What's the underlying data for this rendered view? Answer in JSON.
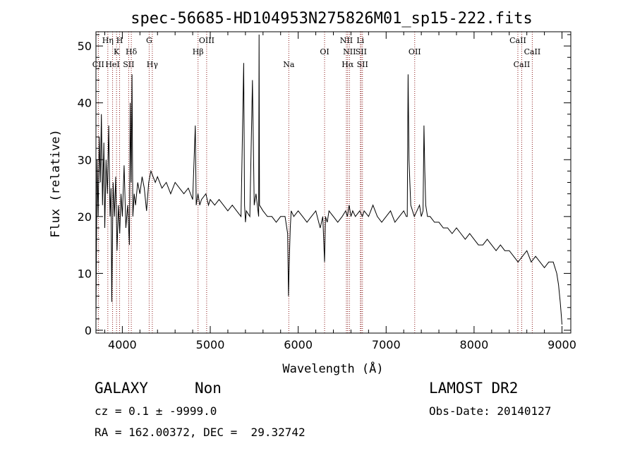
{
  "chart_data": {
    "type": "line",
    "title": "spec-56685-HD104953N275826M01_sp15-222.fits",
    "xlabel": "Wavelength (Å)",
    "ylabel": "Flux (relative)",
    "xlim": [
      3700,
      9100
    ],
    "ylim": [
      -0.5,
      52.5
    ],
    "xticks": [
      4000,
      5000,
      6000,
      7000,
      8000,
      9000
    ],
    "yticks": [
      0,
      10,
      20,
      30,
      40,
      50
    ],
    "grid": false,
    "spectral_lines": [
      {
        "label": "CII",
        "wavelength": 3727,
        "row": 3
      },
      {
        "label": "Hη",
        "wavelength": 3835,
        "row": 1
      },
      {
        "label": "HeI",
        "wavelength": 3889,
        "row": 3
      },
      {
        "label": "K",
        "wavelength": 3934,
        "row": 2
      },
      {
        "label": "H",
        "wavelength": 3969,
        "row": 1
      },
      {
        "label": "SII",
        "wavelength": 4072,
        "row": 3
      },
      {
        "label": "Hδ",
        "wavelength": 4102,
        "row": 2
      },
      {
        "label": "G",
        "wavelength": 4305,
        "row": 1
      },
      {
        "label": "Hγ",
        "wavelength": 4341,
        "row": 3
      },
      {
        "label": "Hβ",
        "wavelength": 4861,
        "row": 2
      },
      {
        "label": "OIII",
        "wavelength": 4959,
        "row": 1
      },
      {
        "label": "Na",
        "wavelength": 5893,
        "row": 3
      },
      {
        "label": "OI",
        "wavelength": 6300,
        "row": 2
      },
      {
        "label": "NII",
        "wavelength": 6548,
        "row": 1
      },
      {
        "label": "NII",
        "wavelength": 6583,
        "row": 2
      },
      {
        "label": "Hα",
        "wavelength": 6563,
        "row": 3
      },
      {
        "label": "Li",
        "wavelength": 6707,
        "row": 1
      },
      {
        "label": "SII",
        "wavelength": 6716,
        "row": 2
      },
      {
        "label": "SII",
        "wavelength": 6731,
        "row": 3
      },
      {
        "label": "OII",
        "wavelength": 7325,
        "row": 2
      },
      {
        "label": "CaII",
        "wavelength": 8498,
        "row": 1
      },
      {
        "label": "CaII",
        "wavelength": 8542,
        "row": 3
      },
      {
        "label": "CaII",
        "wavelength": 8662,
        "row": 2
      }
    ],
    "series": [
      {
        "x": [
          3700,
          3712,
          3725,
          3738,
          3750,
          3762,
          3775,
          3790,
          3800,
          3815,
          3830,
          3845,
          3860,
          3872,
          3880,
          3895,
          3910,
          3925,
          3940,
          3955,
          3970,
          3985,
          4000,
          4020,
          4040,
          4060,
          4080,
          4090,
          4100,
          4110,
          4120,
          4135,
          4150,
          4175,
          4200,
          4225,
          4250,
          4275,
          4300,
          4325,
          4350,
          4375,
          4400,
          4450,
          4500,
          4550,
          4600,
          4650,
          4700,
          4750,
          4800,
          4830,
          4840,
          4860,
          4880,
          4900,
          4950,
          4980,
          5000,
          5050,
          5100,
          5150,
          5200,
          5250,
          5300,
          5350,
          5380,
          5390,
          5400,
          5410,
          5450,
          5480,
          5500,
          5520,
          5550,
          5555,
          5560,
          5600,
          5650,
          5700,
          5750,
          5800,
          5850,
          5880,
          5890,
          5895,
          5900,
          5910,
          5920,
          5950,
          6000,
          6050,
          6100,
          6150,
          6200,
          6250,
          6280,
          6300,
          6310,
          6330,
          6350,
          6400,
          6450,
          6500,
          6540,
          6560,
          6580,
          6600,
          6620,
          6650,
          6700,
          6730,
          6750,
          6800,
          6850,
          6900,
          6950,
          7000,
          7050,
          7100,
          7150,
          7200,
          7230,
          7240,
          7250,
          7260,
          7270,
          7280,
          7300,
          7320,
          7350,
          7380,
          7400,
          7420,
          7430,
          7440,
          7450,
          7470,
          7500,
          7550,
          7600,
          7650,
          7700,
          7750,
          7800,
          7850,
          7900,
          7950,
          8000,
          8050,
          8100,
          8150,
          8200,
          8250,
          8300,
          8350,
          8400,
          8450,
          8500,
          8550,
          8600,
          8650,
          8700,
          8750,
          8800,
          8850,
          8900,
          8920,
          8940,
          8960,
          8980,
          8990,
          9000
        ],
        "y": [
          2,
          30,
          20,
          34,
          26,
          38,
          22,
          33,
          18,
          30,
          24,
          36,
          20,
          25,
          5,
          26,
          20,
          27,
          14,
          22,
          17,
          24,
          20,
          29,
          18,
          22,
          15,
          40,
          26,
          45,
          20,
          24,
          22,
          26,
          24,
          27,
          25,
          21,
          26,
          28,
          27,
          26,
          27,
          25,
          26,
          24,
          26,
          25,
          24,
          25,
          23,
          36,
          22,
          24,
          22,
          23,
          24,
          22,
          23,
          22,
          23,
          22,
          21,
          22,
          21,
          20,
          47,
          22,
          19,
          21,
          20,
          44,
          22,
          24,
          20,
          52,
          22,
          21,
          20,
          20,
          19,
          20,
          20,
          17,
          6,
          10,
          13,
          18,
          21,
          20,
          21,
          20,
          19,
          20,
          21,
          18,
          20,
          12,
          20,
          19,
          21,
          20,
          19,
          20,
          21,
          20,
          22,
          20,
          21,
          20,
          21,
          20,
          21,
          20,
          22,
          20,
          19,
          20,
          21,
          19,
          20,
          21,
          20,
          20,
          45,
          30,
          26,
          22,
          21,
          20,
          21,
          22,
          20,
          21,
          36,
          28,
          22,
          20,
          20,
          19,
          19,
          18,
          18,
          17,
          18,
          17,
          16,
          17,
          16,
          15,
          15,
          16,
          15,
          14,
          15,
          14,
          14,
          13,
          12,
          13,
          14,
          12,
          13,
          12,
          11,
          12,
          12,
          11,
          10,
          8,
          5,
          3,
          1
        ]
      }
    ]
  },
  "footer": {
    "class_text": "GALAXY",
    "subclass_text": "Non",
    "survey_text": "LAMOST DR2",
    "cz_text": "cz = 0.1 ± -9999.0",
    "obsdate_text": "Obs-Date: 20140127",
    "radec_text": "RA = 162.00372, DEC =  29.32742"
  },
  "colors": {
    "spectrum": "#000000",
    "line_markers": "#8b1a1a",
    "frame": "#000000",
    "background": "#ffffff"
  }
}
